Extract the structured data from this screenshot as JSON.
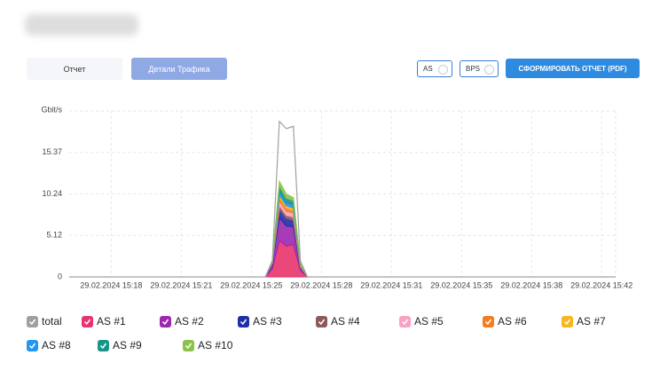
{
  "header": {
    "tabs": [
      "Отчет",
      "Детали Трафика"
    ],
    "selects": [
      "AS",
      "BPS"
    ],
    "button": "СФОРМИРОВАТЬ ОТЧЕТ (PDF)"
  },
  "chart_data": {
    "type": "area",
    "stacked": true,
    "y_label": "Gbit/s",
    "ylim": [
      0,
      20.49
    ],
    "yticks": [
      0,
      5.12,
      10.24,
      15.37
    ],
    "grid": true,
    "categories": [
      null,
      null,
      null,
      null,
      null,
      null,
      "29.02.2024 15:18",
      null,
      null,
      null,
      null,
      null,
      null,
      null,
      null,
      null,
      "29.02.2024 15:21",
      null,
      null,
      null,
      null,
      null,
      null,
      null,
      null,
      null,
      "29.02.2024 15:25",
      null,
      null,
      null,
      null,
      null,
      null,
      null,
      null,
      null,
      "29.02.2024 15:28",
      null,
      null,
      null,
      null,
      null,
      null,
      null,
      null,
      null,
      "29.02.2024 15:31",
      null,
      null,
      null,
      null,
      null,
      null,
      null,
      null,
      null,
      "29.02.2024 15:35",
      null,
      null,
      null,
      null,
      null,
      null,
      null,
      null,
      null,
      "29.02.2024 15:38",
      null,
      null,
      null,
      null,
      null,
      null,
      null,
      null,
      null,
      "29.02.2024 15:42",
      null,
      null
    ],
    "series": [
      {
        "name": "total",
        "type": "line",
        "color": "#a0a0a0",
        "values": [
          0,
          0,
          0,
          0,
          0,
          0,
          0,
          0,
          0,
          0,
          0,
          0,
          0,
          0,
          0,
          0,
          0,
          0,
          0,
          0,
          0,
          0,
          0,
          0,
          0,
          0,
          0,
          0,
          0,
          2.0,
          19.2,
          18.3,
          18.6,
          2.0,
          0,
          0,
          0,
          0,
          0,
          0,
          0,
          0,
          0,
          0,
          0,
          0,
          0,
          0,
          0,
          0,
          0,
          0,
          0,
          0,
          0,
          0,
          0,
          0,
          0,
          0,
          0,
          0,
          0,
          0,
          0,
          0,
          0,
          0,
          0,
          0,
          0,
          0,
          0,
          0,
          0,
          0,
          0,
          0,
          0
        ]
      },
      {
        "name": "AS #1",
        "type": "area",
        "color": "#e8336d",
        "values": [
          0,
          0,
          0,
          0,
          0,
          0,
          0,
          0,
          0,
          0,
          0,
          0,
          0,
          0,
          0,
          0,
          0,
          0,
          0,
          0,
          0,
          0,
          0,
          0,
          0,
          0,
          0,
          0,
          0,
          1.0,
          4.5,
          3.8,
          4.0,
          0.8,
          0,
          0,
          0,
          0,
          0,
          0,
          0,
          0,
          0,
          0,
          0,
          0,
          0,
          0,
          0,
          0,
          0,
          0,
          0,
          0,
          0,
          0,
          0,
          0,
          0,
          0,
          0,
          0,
          0,
          0,
          0,
          0,
          0,
          0,
          0,
          0,
          0,
          0,
          0,
          0,
          0,
          0,
          0,
          0,
          0
        ]
      },
      {
        "name": "AS #2",
        "type": "area",
        "color": "#9c27b0",
        "values": [
          0,
          0,
          0,
          0,
          0,
          0,
          0,
          0,
          0,
          0,
          0,
          0,
          0,
          0,
          0,
          0,
          0,
          0,
          0,
          0,
          0,
          0,
          0,
          0,
          0,
          0,
          0,
          0,
          0,
          0.4,
          2.8,
          2.5,
          2.2,
          0.3,
          0,
          0,
          0,
          0,
          0,
          0,
          0,
          0,
          0,
          0,
          0,
          0,
          0,
          0,
          0,
          0,
          0,
          0,
          0,
          0,
          0,
          0,
          0,
          0,
          0,
          0,
          0,
          0,
          0,
          0,
          0,
          0,
          0,
          0,
          0,
          0,
          0,
          0,
          0,
          0,
          0,
          0,
          0,
          0,
          0
        ]
      },
      {
        "name": "AS #3",
        "type": "area",
        "color": "#1e2fa8",
        "values": [
          0,
          0,
          0,
          0,
          0,
          0,
          0,
          0,
          0,
          0,
          0,
          0,
          0,
          0,
          0,
          0,
          0,
          0,
          0,
          0,
          0,
          0,
          0,
          0,
          0,
          0,
          0,
          0,
          0,
          0.2,
          1.0,
          0.9,
          0.8,
          0.1,
          0,
          0,
          0,
          0,
          0,
          0,
          0,
          0,
          0,
          0,
          0,
          0,
          0,
          0,
          0,
          0,
          0,
          0,
          0,
          0,
          0,
          0,
          0,
          0,
          0,
          0,
          0,
          0,
          0,
          0,
          0,
          0,
          0,
          0,
          0,
          0,
          0,
          0,
          0,
          0,
          0,
          0,
          0,
          0,
          0
        ]
      },
      {
        "name": "AS #4",
        "type": "area",
        "color": "#8d5a5a",
        "values": [
          0,
          0,
          0,
          0,
          0,
          0,
          0,
          0,
          0,
          0,
          0,
          0,
          0,
          0,
          0,
          0,
          0,
          0,
          0,
          0,
          0,
          0,
          0,
          0,
          0,
          0,
          0,
          0,
          0,
          0.1,
          0.5,
          0.4,
          0.4,
          0.1,
          0,
          0,
          0,
          0,
          0,
          0,
          0,
          0,
          0,
          0,
          0,
          0,
          0,
          0,
          0,
          0,
          0,
          0,
          0,
          0,
          0,
          0,
          0,
          0,
          0,
          0,
          0,
          0,
          0,
          0,
          0,
          0,
          0,
          0,
          0,
          0,
          0,
          0,
          0,
          0,
          0,
          0,
          0,
          0,
          0
        ]
      },
      {
        "name": "AS #5",
        "type": "area",
        "color": "#f7a1c4",
        "values": [
          0,
          0,
          0,
          0,
          0,
          0,
          0,
          0,
          0,
          0,
          0,
          0,
          0,
          0,
          0,
          0,
          0,
          0,
          0,
          0,
          0,
          0,
          0,
          0,
          0,
          0,
          0,
          0,
          0,
          0.1,
          0.6,
          0.5,
          0.5,
          0.1,
          0,
          0,
          0,
          0,
          0,
          0,
          0,
          0,
          0,
          0,
          0,
          0,
          0,
          0,
          0,
          0,
          0,
          0,
          0,
          0,
          0,
          0,
          0,
          0,
          0,
          0,
          0,
          0,
          0,
          0,
          0,
          0,
          0,
          0,
          0,
          0,
          0,
          0,
          0,
          0,
          0,
          0,
          0,
          0,
          0
        ]
      },
      {
        "name": "AS #6",
        "type": "area",
        "color": "#f57c1f",
        "values": [
          0,
          0,
          0,
          0,
          0,
          0,
          0,
          0,
          0,
          0,
          0,
          0,
          0,
          0,
          0,
          0,
          0,
          0,
          0,
          0,
          0,
          0,
          0,
          0,
          0,
          0,
          0,
          0,
          0,
          0.05,
          0.4,
          0.4,
          0.3,
          0.05,
          0,
          0,
          0,
          0,
          0,
          0,
          0,
          0,
          0,
          0,
          0,
          0,
          0,
          0,
          0,
          0,
          0,
          0,
          0,
          0,
          0,
          0,
          0,
          0,
          0,
          0,
          0,
          0,
          0,
          0,
          0,
          0,
          0,
          0,
          0,
          0,
          0,
          0,
          0,
          0,
          0,
          0,
          0,
          0,
          0
        ]
      },
      {
        "name": "AS #7",
        "type": "area",
        "color": "#f9b51c",
        "values": [
          0,
          0,
          0,
          0,
          0,
          0,
          0,
          0,
          0,
          0,
          0,
          0,
          0,
          0,
          0,
          0,
          0,
          0,
          0,
          0,
          0,
          0,
          0,
          0,
          0,
          0,
          0,
          0,
          0,
          0.05,
          0.3,
          0.3,
          0.3,
          0.05,
          0,
          0,
          0,
          0,
          0,
          0,
          0,
          0,
          0,
          0,
          0,
          0,
          0,
          0,
          0,
          0,
          0,
          0,
          0,
          0,
          0,
          0,
          0,
          0,
          0,
          0,
          0,
          0,
          0,
          0,
          0,
          0,
          0,
          0,
          0,
          0,
          0,
          0,
          0,
          0,
          0,
          0,
          0,
          0,
          0
        ]
      },
      {
        "name": "AS #8",
        "type": "area",
        "color": "#2196f3",
        "values": [
          0,
          0,
          0,
          0,
          0,
          0,
          0,
          0,
          0,
          0,
          0,
          0,
          0,
          0,
          0,
          0,
          0,
          0,
          0,
          0,
          0,
          0,
          0,
          0,
          0,
          0,
          0,
          0,
          0,
          0.05,
          0.5,
          0.4,
          0.4,
          0.05,
          0,
          0,
          0,
          0,
          0,
          0,
          0,
          0,
          0,
          0,
          0,
          0,
          0,
          0,
          0,
          0,
          0,
          0,
          0,
          0,
          0,
          0,
          0,
          0,
          0,
          0,
          0,
          0,
          0,
          0,
          0,
          0,
          0,
          0,
          0,
          0,
          0,
          0,
          0,
          0,
          0,
          0,
          0,
          0,
          0
        ]
      },
      {
        "name": "AS #9",
        "type": "area",
        "color": "#159688",
        "values": [
          0,
          0,
          0,
          0,
          0,
          0,
          0,
          0,
          0,
          0,
          0,
          0,
          0,
          0,
          0,
          0,
          0,
          0,
          0,
          0,
          0,
          0,
          0,
          0,
          0,
          0,
          0,
          0,
          0,
          0.05,
          0.6,
          0.5,
          0.5,
          0.05,
          0,
          0,
          0,
          0,
          0,
          0,
          0,
          0,
          0,
          0,
          0,
          0,
          0,
          0,
          0,
          0,
          0,
          0,
          0,
          0,
          0,
          0,
          0,
          0,
          0,
          0,
          0,
          0,
          0,
          0,
          0,
          0,
          0,
          0,
          0,
          0,
          0,
          0,
          0,
          0,
          0,
          0,
          0,
          0,
          0
        ]
      },
      {
        "name": "AS #10",
        "type": "area",
        "color": "#8bc34a",
        "values": [
          0,
          0,
          0,
          0,
          0,
          0,
          0,
          0,
          0,
          0,
          0,
          0,
          0,
          0,
          0,
          0,
          0,
          0,
          0,
          0,
          0,
          0,
          0,
          0,
          0,
          0,
          0,
          0,
          0,
          0.05,
          0.6,
          0.5,
          0.4,
          0.05,
          0,
          0,
          0,
          0,
          0,
          0,
          0,
          0,
          0,
          0,
          0,
          0,
          0,
          0,
          0,
          0,
          0,
          0,
          0,
          0,
          0,
          0,
          0,
          0,
          0,
          0,
          0,
          0,
          0,
          0,
          0,
          0,
          0,
          0,
          0,
          0,
          0,
          0,
          0,
          0,
          0,
          0,
          0,
          0,
          0
        ]
      }
    ]
  }
}
